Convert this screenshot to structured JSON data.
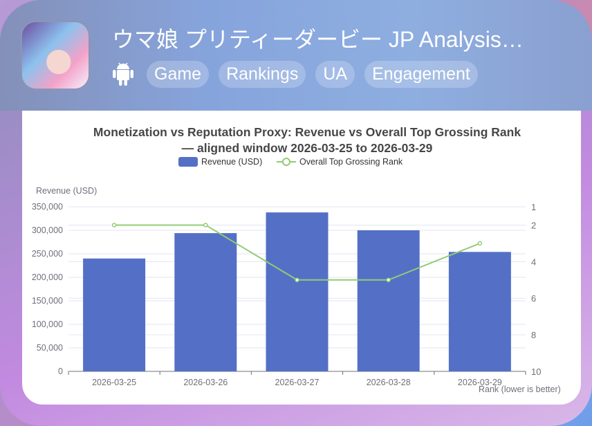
{
  "header": {
    "title": "ウマ娘 プリティーダービー JP Analysis…",
    "platform_icon": "android-icon",
    "tags": [
      "Game",
      "Rankings",
      "UA",
      "Engagement"
    ]
  },
  "chart_data": {
    "type": "bar",
    "title_line1": "Monetization vs Reputation Proxy: Revenue vs Overall Top Grossing Rank",
    "title_line2": "— aligned window 2026-03-25 to 2026-03-29",
    "categories": [
      "2026-03-25",
      "2026-03-26",
      "2026-03-27",
      "2026-03-28",
      "2026-03-29"
    ],
    "series": [
      {
        "name": "Revenue (USD)",
        "type": "bar",
        "axis": "left",
        "color": "#5470c6",
        "values": [
          240000,
          294000,
          338000,
          300000,
          254000
        ]
      },
      {
        "name": "Overall Top Grossing Rank",
        "type": "line",
        "axis": "right",
        "color": "#91cc75",
        "values": [
          2,
          2,
          5,
          5,
          3
        ]
      }
    ],
    "ylabel": "Revenue (USD)",
    "ylim": [
      0,
      350000
    ],
    "yticks": [
      "0",
      "50,000",
      "100,000",
      "150,000",
      "200,000",
      "250,000",
      "300,000",
      "350,000"
    ],
    "y2label": "Rank (lower is better)",
    "y2lim": [
      1,
      10
    ],
    "y2inverted": true,
    "y2ticks": [
      "1",
      "2",
      "4",
      "6",
      "8",
      "10"
    ],
    "legend": "top-center"
  }
}
